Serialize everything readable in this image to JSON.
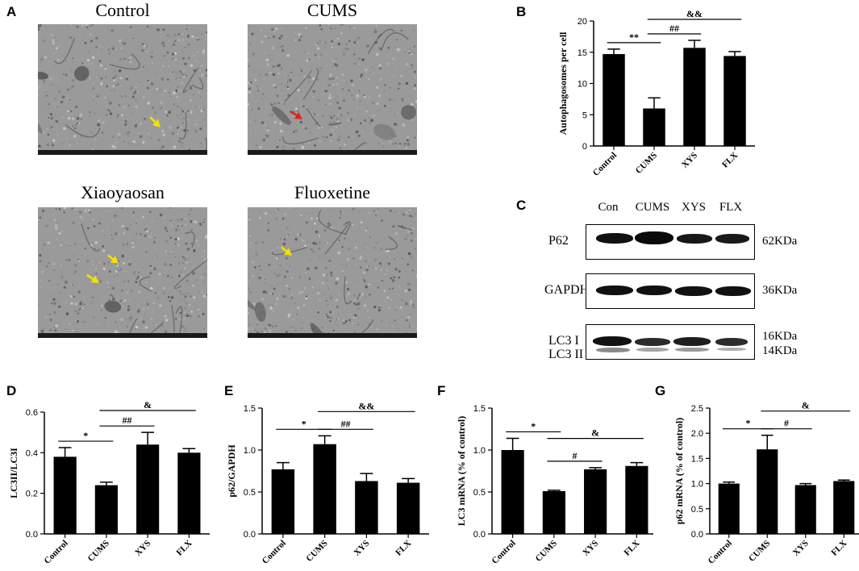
{
  "panels": {
    "A": "A",
    "B": "B",
    "C": "C",
    "D": "D",
    "E": "E",
    "F": "F",
    "G": "G"
  },
  "em_images": [
    {
      "title": "Control",
      "arrow_color": "#f2e200"
    },
    {
      "title": "CUMS",
      "arrow_color": "#e0241c"
    },
    {
      "title": "Xiaoyaosan",
      "arrow_color": "#f2e200"
    },
    {
      "title": "Fluoxetine",
      "arrow_color": "#f2e200"
    }
  ],
  "western_blot": {
    "lanes": [
      "Con",
      "CUMS",
      "XYS",
      "FLX"
    ],
    "rows": [
      {
        "name": "P62",
        "size": "62KDa"
      },
      {
        "name": "GAPDH",
        "size": "36KDa"
      },
      {
        "name_lines": [
          "LC3 I",
          "LC3 II"
        ],
        "size_lines": [
          "16KDa",
          "14KDa"
        ]
      }
    ]
  },
  "chart_data": [
    {
      "panel": "B",
      "type": "bar",
      "categories": [
        "Control",
        "CUMS",
        "XYS",
        "FLX"
      ],
      "values": [
        14.7,
        6.0,
        15.7,
        14.4
      ],
      "errors": [
        0.8,
        1.7,
        1.2,
        0.7
      ],
      "ylabel": "Autophagosomes per cell",
      "ylim": [
        0,
        20
      ],
      "yticks": [
        0,
        5,
        10,
        15,
        20
      ],
      "yticklabels": [
        "0",
        "5",
        "10",
        "15",
        "20"
      ],
      "significance": [
        {
          "from": 0,
          "to": 1,
          "label": "**"
        },
        {
          "from": 1,
          "to": 2,
          "label": "##"
        },
        {
          "from": 1,
          "to": 3,
          "label": "&&"
        }
      ]
    },
    {
      "panel": "D",
      "type": "bar",
      "categories": [
        "Control",
        "CUMS",
        "XYS",
        "FLX"
      ],
      "values": [
        0.38,
        0.24,
        0.44,
        0.4
      ],
      "errors": [
        0.045,
        0.015,
        0.06,
        0.02
      ],
      "ylabel": "LC3II/LC3I",
      "ylim": [
        0,
        0.6
      ],
      "yticks": [
        0,
        0.2,
        0.4,
        0.6
      ],
      "yticklabels": [
        "0.0",
        "0.2",
        "0.4",
        "0.6"
      ],
      "significance": [
        {
          "from": 0,
          "to": 1,
          "label": "*"
        },
        {
          "from": 1,
          "to": 2,
          "label": "##"
        },
        {
          "from": 1,
          "to": 3,
          "label": "&"
        }
      ]
    },
    {
      "panel": "E",
      "type": "bar",
      "categories": [
        "Control",
        "CUMS",
        "XYS",
        "FLX"
      ],
      "values": [
        0.77,
        1.07,
        0.63,
        0.61
      ],
      "errors": [
        0.08,
        0.1,
        0.09,
        0.05
      ],
      "ylabel": "p62/GAPDH",
      "ylim": [
        0,
        1.5
      ],
      "yticks": [
        0,
        0.5,
        1.0,
        1.5
      ],
      "yticklabels": [
        "0.0",
        "0.5",
        "1.0",
        "1.5"
      ],
      "significance": [
        {
          "from": 0,
          "to": 1,
          "label": "*"
        },
        {
          "from": 1,
          "to": 2,
          "label": "##"
        },
        {
          "from": 1,
          "to": 3,
          "label": "&&"
        }
      ]
    },
    {
      "panel": "F",
      "type": "bar",
      "categories": [
        "Control",
        "CUMS",
        "XYS",
        "FLX"
      ],
      "values": [
        1.0,
        0.51,
        0.77,
        0.81
      ],
      "errors": [
        0.14,
        0.01,
        0.02,
        0.04
      ],
      "ylabel": "LC3 mRNA (% of control)",
      "ylim": [
        0,
        1.5
      ],
      "yticks": [
        0,
        0.5,
        1.0,
        1.5
      ],
      "yticklabels": [
        "0.0",
        "0.5",
        "1.0",
        "1.5"
      ],
      "significance": [
        {
          "from": 0,
          "to": 1,
          "label": "*"
        },
        {
          "from": 1,
          "to": 2,
          "label": "#"
        },
        {
          "from": 1,
          "to": 3,
          "label": "&"
        }
      ]
    },
    {
      "panel": "G",
      "type": "bar",
      "categories": [
        "Control",
        "CUMS",
        "XYS",
        "FLX"
      ],
      "values": [
        1.0,
        1.68,
        0.97,
        1.05
      ],
      "errors": [
        0.03,
        0.28,
        0.03,
        0.02
      ],
      "ylabel": "p62 mRNA (% of control)",
      "ylim": [
        0,
        2.5
      ],
      "yticks": [
        0,
        0.5,
        1.0,
        1.5,
        2.0,
        2.5
      ],
      "yticklabels": [
        "0.0",
        "0.5",
        "1.0",
        "1.5",
        "2.0",
        "2.5"
      ],
      "significance": [
        {
          "from": 0,
          "to": 1,
          "label": "*"
        },
        {
          "from": 1,
          "to": 2,
          "label": "#"
        },
        {
          "from": 1,
          "to": 3,
          "label": "&"
        }
      ]
    }
  ]
}
